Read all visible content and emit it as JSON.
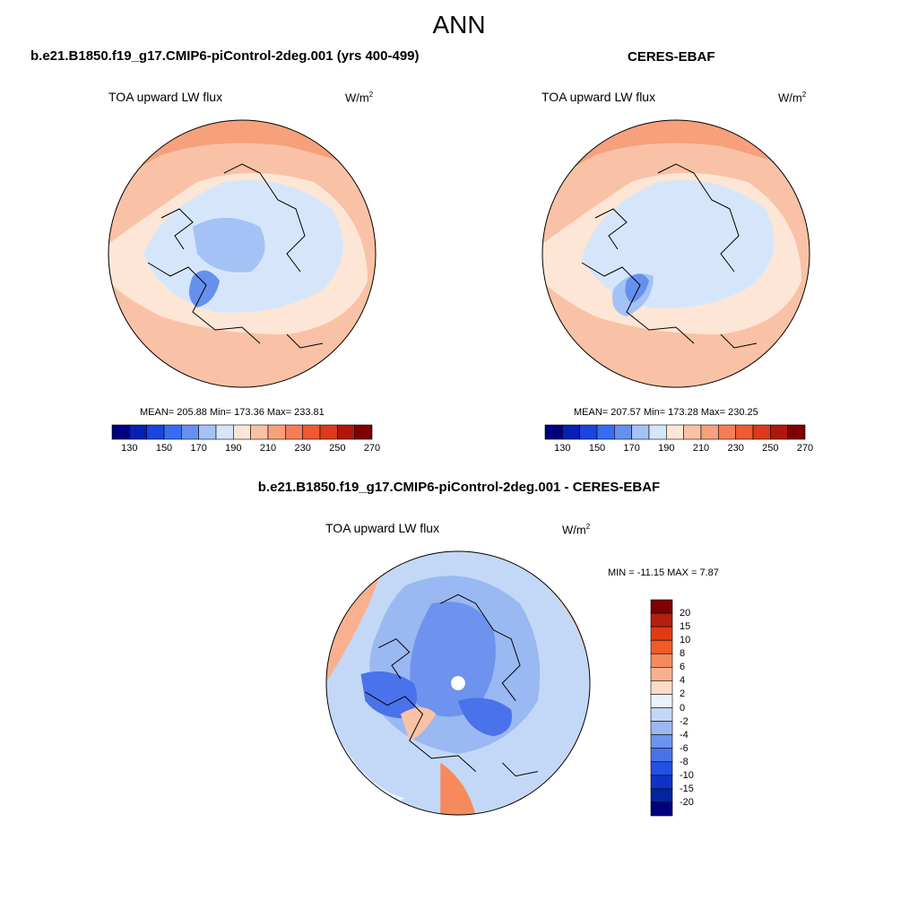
{
  "figure": {
    "title": "ANN"
  },
  "panels": [
    {
      "case_title": "b.e21.B1850.f19_g17.CMIP6-piControl-2deg.001 (yrs 400-499)",
      "variable": "TOA upward LW flux",
      "units_base": "W/m",
      "units_exp": "2",
      "stats": "MEAN= 205.88  Min= 173.36  Max= 233.81"
    },
    {
      "case_title": "CERES-EBAF",
      "variable": "TOA upward LW flux",
      "units_base": "W/m",
      "units_exp": "2",
      "stats": "MEAN= 207.57  Min= 173.28  Max= 230.25"
    },
    {
      "case_title": "b.e21.B1850.f19_g17.CMIP6-piControl-2deg.001 - CERES-EBAF",
      "variable": "TOA upward LW flux",
      "units_base": "W/m",
      "units_exp": "2",
      "stats": "MIN = -11.15 MAX =   7.87"
    }
  ],
  "colorbar_abs": {
    "colors": [
      "#00007f",
      "#0520b3",
      "#1b44e0",
      "#3a6cf2",
      "#6690ee",
      "#a4c2f5",
      "#d6e6fa",
      "#fde6d6",
      "#f9c2a6",
      "#f7a07c",
      "#f47e55",
      "#ee5a32",
      "#dc3a1a",
      "#b0170c",
      "#7f0000"
    ],
    "tick_labels": [
      "130",
      "150",
      "170",
      "190",
      "210",
      "230",
      "250",
      "270"
    ]
  },
  "colorbar_diff": {
    "colors": [
      "#7f0000",
      "#b3200c",
      "#e03c13",
      "#f25a2a",
      "#f78a5c",
      "#f9b08e",
      "#fcdcc5",
      "#eaf3fd",
      "#c3d8f6",
      "#9ab8f1",
      "#6d93ee",
      "#4a72ea",
      "#2550e4",
      "#0f33c9",
      "#00259c",
      "#00007f"
    ],
    "tick_labels": [
      "20",
      "15",
      "10",
      "8",
      "6",
      "4",
      "2",
      "0",
      "-2",
      "-4",
      "-6",
      "-8",
      "-10",
      "-15",
      "-20"
    ]
  }
}
